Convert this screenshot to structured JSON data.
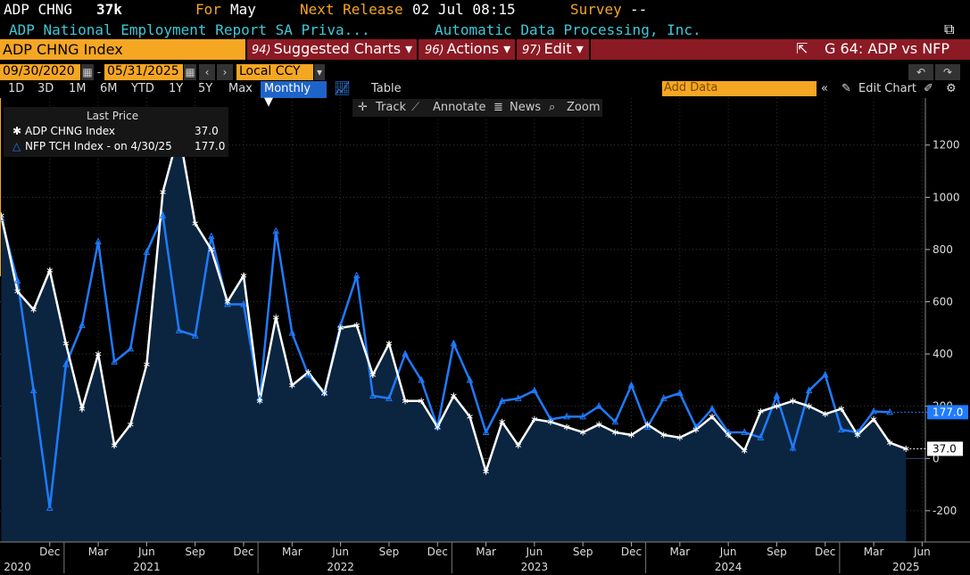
{
  "header": {
    "ticker": "ADP CHNG",
    "value": "37k",
    "for_label": "For",
    "for_value": "May",
    "next_release_label": "Next Release",
    "next_release_value": "02 Jul 08:15",
    "survey_label": "Survey",
    "survey_value": "--",
    "description": "ADP National Employment Report SA Priva...",
    "company": "Automatic Data Processing, Inc."
  },
  "menubar": {
    "ticker_box": "ADP CHNG Index",
    "items": [
      {
        "num": "94)",
        "label": "Suggested Charts ▾"
      },
      {
        "num": "96)",
        "label": "Actions ▾"
      },
      {
        "num": "97)",
        "label": "Edit ▾"
      }
    ],
    "chart_title": "G 64: ADP vs NFP"
  },
  "controls": {
    "start_date": "09/30/2020",
    "end_date": "05/31/2025",
    "currency": "Local CCY",
    "ranges": [
      "1D",
      "3D",
      "1M",
      "6M",
      "YTD",
      "1Y",
      "5Y",
      "Max"
    ],
    "frequency": "Monthly ▼",
    "table_label": "Table",
    "add_data_placeholder": "Add Data",
    "edit_chart_label": "Edit Chart"
  },
  "toolbar": {
    "track": "Track",
    "annotate": "Annotate",
    "news": "News",
    "zoom": "Zoom"
  },
  "legend": {
    "title": "Last Price",
    "series1_label": "ADP CHNG Index",
    "series1_value": "37.0",
    "series2_label": "NFP TCH Index -  on 4/30/25",
    "series2_value": "177.0"
  },
  "colors": {
    "adp": "#ffffff",
    "nfp": "#1f7bff",
    "fill": "#0b2540",
    "accent": "#f5a623",
    "menubar": "#8b1a24"
  },
  "chart_data": {
    "type": "line",
    "ylim": [
      -320,
      1380
    ],
    "yticks": [
      -200,
      0,
      200,
      400,
      600,
      800,
      1000,
      1200
    ],
    "x_start": "2020-09",
    "x_end": "2025-06",
    "month_ticks": [
      {
        "month": "2020-12",
        "label": "Dec"
      },
      {
        "month": "2021-03",
        "label": "Mar"
      },
      {
        "month": "2021-06",
        "label": "Jun"
      },
      {
        "month": "2021-09",
        "label": "Sep"
      },
      {
        "month": "2021-12",
        "label": "Dec"
      },
      {
        "month": "2022-03",
        "label": "Mar"
      },
      {
        "month": "2022-06",
        "label": "Jun"
      },
      {
        "month": "2022-09",
        "label": "Sep"
      },
      {
        "month": "2022-12",
        "label": "Dec"
      },
      {
        "month": "2023-03",
        "label": "Mar"
      },
      {
        "month": "2023-06",
        "label": "Jun"
      },
      {
        "month": "2023-09",
        "label": "Sep"
      },
      {
        "month": "2023-12",
        "label": "Dec"
      },
      {
        "month": "2024-03",
        "label": "Mar"
      },
      {
        "month": "2024-06",
        "label": "Jun"
      },
      {
        "month": "2024-09",
        "label": "Sep"
      },
      {
        "month": "2024-12",
        "label": "Dec"
      },
      {
        "month": "2025-03",
        "label": "Mar"
      },
      {
        "month": "2025-06",
        "label": "Jun"
      }
    ],
    "year_labels": [
      {
        "month": "2020-10",
        "label": "2020"
      },
      {
        "month": "2021-06",
        "label": "2021"
      },
      {
        "month": "2022-06",
        "label": "2022"
      },
      {
        "month": "2023-06",
        "label": "2023"
      },
      {
        "month": "2024-06",
        "label": "2024"
      },
      {
        "month": "2025-05",
        "label": "2025"
      }
    ],
    "series": [
      {
        "name": "ADP CHNG Index",
        "start": "2020-09",
        "values": [
          930,
          640,
          570,
          720,
          440,
          190,
          400,
          50,
          130,
          360,
          1020,
          1250,
          900,
          800,
          600,
          700,
          220,
          540,
          280,
          330,
          250,
          500,
          510,
          320,
          440,
          220,
          220,
          120,
          240,
          160,
          -50,
          140,
          50,
          150,
          140,
          120,
          100,
          130,
          100,
          90,
          130,
          90,
          80,
          110,
          160,
          90,
          30,
          180,
          200,
          220,
          200,
          170,
          190,
          90,
          150,
          60,
          37
        ]
      },
      {
        "name": "NFP TCH Index",
        "start": "2020-09",
        "values": [
          920,
          680,
          260,
          -190,
          360,
          510,
          830,
          370,
          420,
          790,
          930,
          490,
          470,
          850,
          590,
          590,
          230,
          870,
          480,
          320,
          250,
          510,
          700,
          240,
          230,
          400,
          300,
          120,
          440,
          300,
          100,
          220,
          230,
          260,
          150,
          160,
          160,
          200,
          140,
          280,
          120,
          230,
          250,
          120,
          190,
          100,
          100,
          80,
          240,
          40,
          260,
          320,
          110,
          100,
          180,
          177
        ]
      }
    ],
    "last_value_labels": [
      {
        "series": "NFP TCH Index",
        "label": "177.0"
      },
      {
        "series": "ADP CHNG Index",
        "label": "37.0"
      }
    ]
  }
}
